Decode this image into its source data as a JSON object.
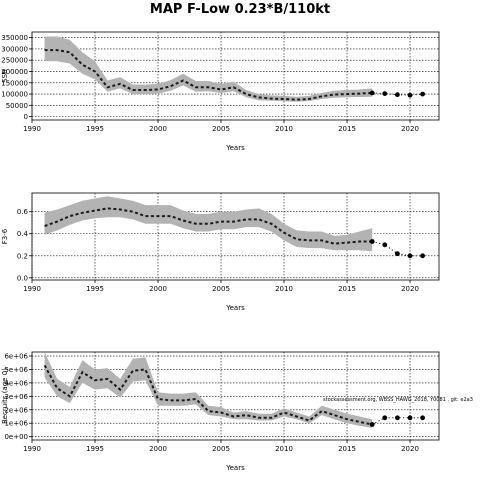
{
  "title": "MAP F-Low 0.23*B/110kt",
  "credit": "stockassessment.org, WBSS_HAWG_2018, Y0081 , git: e2a3",
  "chart_data": [
    {
      "type": "line",
      "name": "ssb",
      "ylabel": "SSB",
      "xlabel": "Years",
      "xlim": [
        1990,
        2022.3
      ],
      "ylim": [
        -15000,
        375000
      ],
      "xticks": [
        1990,
        1995,
        2000,
        2005,
        2010,
        2015,
        2020
      ],
      "yticks": [
        0,
        50000,
        100000,
        150000,
        200000,
        250000,
        300000,
        350000
      ],
      "ytick_labels": [
        "0",
        "50000",
        "100000",
        "150000",
        "200000",
        "250000",
        "300000",
        "350000"
      ],
      "grid": true,
      "x": [
        1991,
        1992,
        1993,
        1994,
        1995,
        1996,
        1997,
        1998,
        1999,
        2000,
        2001,
        2002,
        2003,
        2004,
        2005,
        2006,
        2007,
        2008,
        2009,
        2010,
        2011,
        2012,
        2013,
        2014,
        2015,
        2016,
        2017
      ],
      "estimate": [
        295000,
        295000,
        285000,
        230000,
        200000,
        130000,
        145000,
        118000,
        118000,
        120000,
        135000,
        160000,
        130000,
        130000,
        120000,
        130000,
        100000,
        85000,
        80000,
        78000,
        75000,
        78000,
        90000,
        98000,
        100000,
        102000,
        105000
      ],
      "lower": [
        245000,
        245000,
        235000,
        190000,
        165000,
        110000,
        125000,
        100000,
        100000,
        102000,
        115000,
        138000,
        110000,
        112000,
        104000,
        112000,
        86000,
        72000,
        70000,
        68000,
        66000,
        69000,
        78000,
        84000,
        86000,
        87000,
        88000
      ],
      "upper": [
        355000,
        355000,
        340000,
        285000,
        245000,
        160000,
        175000,
        142000,
        142000,
        145000,
        162000,
        190000,
        158000,
        158000,
        145000,
        155000,
        118000,
        100000,
        94000,
        92000,
        88000,
        92000,
        105000,
        115000,
        118000,
        120000,
        125000
      ],
      "projection_x": [
        2017,
        2018,
        2019,
        2020,
        2021
      ],
      "projection": [
        105000,
        102000,
        97000,
        95000,
        100000
      ]
    },
    {
      "type": "line",
      "name": "fbar",
      "ylabel": "F3-6",
      "xlabel": "Years",
      "xlim": [
        1990,
        2022.3
      ],
      "ylim": [
        -0.02,
        0.77
      ],
      "xticks": [
        1990,
        1995,
        2000,
        2005,
        2010,
        2015,
        2020
      ],
      "yticks": [
        0,
        0.2,
        0.4,
        0.6
      ],
      "ytick_labels": [
        "0.0",
        "0.2",
        "0.4",
        "0.6"
      ],
      "grid": true,
      "x": [
        1991,
        1992,
        1993,
        1994,
        1995,
        1996,
        1997,
        1998,
        1999,
        2000,
        2001,
        2002,
        2003,
        2004,
        2005,
        2006,
        2007,
        2008,
        2009,
        2010,
        2011,
        2012,
        2013,
        2014,
        2015,
        2016,
        2017
      ],
      "estimate": [
        0.47,
        0.51,
        0.56,
        0.59,
        0.61,
        0.63,
        0.62,
        0.6,
        0.56,
        0.56,
        0.56,
        0.52,
        0.49,
        0.49,
        0.51,
        0.51,
        0.53,
        0.53,
        0.49,
        0.41,
        0.35,
        0.34,
        0.34,
        0.31,
        0.32,
        0.33,
        0.33
      ],
      "lower": [
        0.39,
        0.43,
        0.48,
        0.52,
        0.54,
        0.55,
        0.55,
        0.53,
        0.49,
        0.49,
        0.49,
        0.45,
        0.42,
        0.42,
        0.44,
        0.44,
        0.46,
        0.46,
        0.42,
        0.34,
        0.28,
        0.27,
        0.27,
        0.25,
        0.25,
        0.25,
        0.24
      ],
      "upper": [
        0.59,
        0.62,
        0.66,
        0.7,
        0.72,
        0.74,
        0.72,
        0.7,
        0.66,
        0.66,
        0.66,
        0.61,
        0.58,
        0.58,
        0.6,
        0.6,
        0.62,
        0.63,
        0.58,
        0.49,
        0.43,
        0.42,
        0.42,
        0.38,
        0.39,
        0.42,
        0.45
      ],
      "projection_x": [
        2017,
        2018,
        2019,
        2020,
        2021
      ],
      "projection": [
        0.33,
        0.3,
        0.22,
        0.2,
        0.2
      ]
    },
    {
      "type": "line",
      "name": "recruits",
      "ylabel": "Recruits (age 0)",
      "xlabel": "Years",
      "xlim": [
        1990,
        2022.3
      ],
      "ylim": [
        -250000,
        6300000
      ],
      "xticks": [
        1990,
        1995,
        2000,
        2005,
        2010,
        2015,
        2020
      ],
      "yticks": [
        0,
        1000000,
        2000000,
        3000000,
        4000000,
        5000000,
        6000000
      ],
      "ytick_labels": [
        "0e+00",
        "1e+06",
        "2e+06",
        "3e+06",
        "4e+06",
        "5e+06",
        "6e+06"
      ],
      "grid": true,
      "x": [
        1991,
        1992,
        1993,
        1994,
        1995,
        1996,
        1997,
        1998,
        1999,
        2000,
        2001,
        2002,
        2003,
        2004,
        2005,
        2006,
        2007,
        2008,
        2009,
        2010,
        2011,
        2012,
        2013,
        2014,
        2015,
        2016,
        2017
      ],
      "estimate": [
        5300000,
        3600000,
        3000000,
        4800000,
        4200000,
        4300000,
        3500000,
        4900000,
        5000000,
        2800000,
        2700000,
        2700000,
        2800000,
        1900000,
        1800000,
        1500000,
        1600000,
        1400000,
        1400000,
        1800000,
        1500000,
        1200000,
        1900000,
        1600000,
        1300000,
        1100000,
        900000
      ],
      "lower": [
        4400000,
        3000000,
        2500000,
        4000000,
        3500000,
        3600000,
        2900000,
        4100000,
        4200000,
        2300000,
        2300000,
        2300000,
        2400000,
        1600000,
        1500000,
        1300000,
        1300000,
        1200000,
        1200000,
        1500000,
        1300000,
        1000000,
        1600000,
        1300000,
        1000000,
        800000,
        650000
      ],
      "upper": [
        6300000,
        4300000,
        3700000,
        5700000,
        5000000,
        5100000,
        4300000,
        5800000,
        5900000,
        3300000,
        3200000,
        3200000,
        3300000,
        2300000,
        2200000,
        1800000,
        1900000,
        1700000,
        1700000,
        2100000,
        1800000,
        1500000,
        2300000,
        2000000,
        1700000,
        1500000,
        1300000
      ],
      "projection_x": [
        2017,
        2018,
        2019,
        2020,
        2021
      ],
      "projection": [
        900000,
        1400000,
        1400000,
        1400000,
        1400000
      ]
    }
  ]
}
